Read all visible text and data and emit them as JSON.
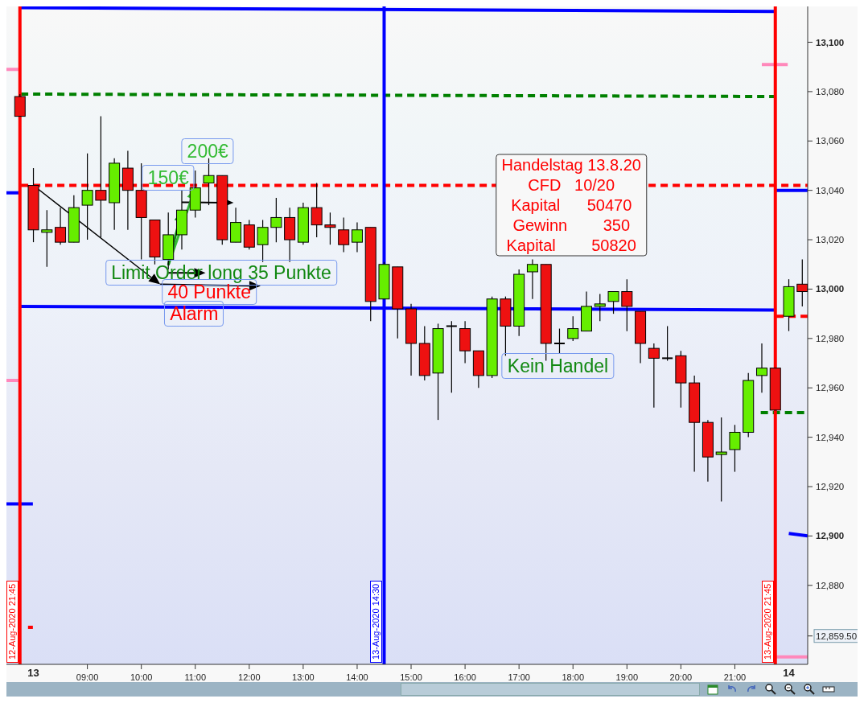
{
  "chart_data": {
    "type": "candlestick",
    "x": [
      7.75,
      8,
      8.25,
      8.5,
      8.75,
      9,
      9.25,
      9.5,
      9.75,
      10,
      10.25,
      10.5,
      10.75,
      11,
      11.25,
      11.5,
      11.75,
      12,
      12.25,
      12.5,
      12.75,
      13,
      13.25,
      13.5,
      13.75,
      14,
      14.25,
      14.5,
      14.75,
      15,
      15.25,
      15.5,
      15.75,
      16,
      16.25,
      16.5,
      16.75,
      17,
      17.25,
      17.5,
      17.75,
      18,
      18.25,
      18.5,
      18.75,
      19,
      19.25,
      19.5,
      19.75,
      20,
      20.25,
      20.5,
      20.75,
      21,
      21.25,
      21.5,
      21.75,
      22,
      22.25
    ],
    "ohlc": [
      [
        13078,
        13079,
        13070,
        13070
      ],
      [
        13042,
        13049,
        13019,
        13024
      ],
      [
        13023,
        13032,
        13009,
        13024
      ],
      [
        13025,
        13033,
        13018,
        13019
      ],
      [
        13019,
        13038,
        13019,
        13033
      ],
      [
        13034,
        13055,
        13020,
        13040
      ],
      [
        13040,
        13070,
        13021,
        13036
      ],
      [
        13035,
        13053,
        13024,
        13051
      ],
      [
        13049,
        13056,
        13024,
        13040
      ],
      [
        13040,
        13051,
        13012,
        13029
      ],
      [
        13028,
        13028,
        13010,
        13013
      ],
      [
        13012,
        13031,
        13008,
        13022
      ],
      [
        13022,
        13040,
        13016,
        13032
      ],
      [
        13032,
        13048,
        13029,
        13041
      ],
      [
        13043,
        13053,
        13034,
        13046
      ],
      [
        13046,
        13046,
        13018,
        13020
      ],
      [
        13019,
        13033,
        13019,
        13027
      ],
      [
        13026,
        13028,
        13016,
        13017
      ],
      [
        13018,
        13028,
        13011,
        13025
      ],
      [
        13025,
        13037,
        13019,
        13029
      ],
      [
        13029,
        13033,
        13011,
        13020
      ],
      [
        13019,
        13035,
        13018,
        13033
      ],
      [
        13033,
        13043,
        13021,
        13026
      ],
      [
        13026,
        13031,
        13018,
        13025
      ],
      [
        13024,
        13029,
        13015,
        13018
      ],
      [
        13019,
        13027,
        13015,
        13024
      ],
      [
        13025,
        13025,
        12987,
        12995
      ],
      [
        12996,
        13011,
        12996,
        13010
      ],
      [
        13009,
        13009,
        12980,
        12992
      ],
      [
        12992,
        12994,
        12965,
        12978
      ],
      [
        12978,
        12985,
        12963,
        12965
      ],
      [
        12966,
        12986,
        12947,
        12984
      ],
      [
        12985,
        12987,
        12958,
        12985
      ],
      [
        12984,
        12987,
        12970,
        12975
      ],
      [
        12975,
        12975,
        12960,
        12965
      ],
      [
        12965,
        12997,
        12964,
        12996
      ],
      [
        12996,
        12997,
        12973,
        12985
      ],
      [
        12985,
        13008,
        12981,
        13006
      ],
      [
        13007,
        13012,
        12996,
        13010
      ],
      [
        13010,
        13010,
        12971,
        12978
      ],
      [
        12978,
        12984,
        12974,
        12978
      ],
      [
        12980,
        12989,
        12979,
        12984
      ],
      [
        12983,
        12999,
        12983,
        12993
      ],
      [
        12993,
        12998,
        12987,
        12994
      ],
      [
        12995,
        12999,
        12990,
        12999
      ],
      [
        12999,
        13004,
        12983,
        12993
      ],
      [
        12991,
        12991,
        12970,
        12978
      ],
      [
        12976,
        12978,
        12952,
        12972
      ],
      [
        12972,
        12985,
        12971,
        12972
      ],
      [
        12973,
        12975,
        12952,
        12962
      ],
      [
        12962,
        12965,
        12926,
        12946
      ],
      [
        12946,
        12947,
        12922,
        12932
      ],
      [
        12933,
        12948,
        12914,
        12934
      ],
      [
        12935,
        12945,
        12926,
        12942
      ],
      [
        12942,
        12966,
        12940,
        12963
      ],
      [
        12965,
        12978,
        12958,
        12968
      ],
      [
        12968,
        12968,
        12951,
        12951
      ],
      [
        12989,
        13004,
        12983,
        13001
      ],
      [
        13002,
        13012,
        12993,
        12999
      ]
    ],
    "colors": [
      "#ee1111",
      "#ee1111",
      "#66ee00",
      "#ee1111",
      "#66ee00",
      "#66ee00",
      "#ee1111",
      "#66ee00",
      "#ee1111",
      "#ee1111",
      "#ee1111",
      "#66ee00",
      "#66ee00",
      "#66ee00",
      "#66ee00",
      "#ee1111",
      "#66ee00",
      "#ee1111",
      "#66ee00",
      "#66ee00",
      "#ee1111",
      "#66ee00",
      "#ee1111",
      "#ee1111",
      "#ee1111",
      "#66ee00",
      "#ee1111",
      "#66ee00",
      "#ee1111",
      "#ee1111",
      "#ee1111",
      "#66ee00",
      "#000000",
      "#ee1111",
      "#ee1111",
      "#66ee00",
      "#ee1111",
      "#66ee00",
      "#66ee00",
      "#ee1111",
      "#000000",
      "#66ee00",
      "#66ee00",
      "#66ee00",
      "#66ee00",
      "#ee1111",
      "#ee1111",
      "#ee1111",
      "#000000",
      "#ee1111",
      "#ee1111",
      "#ee1111",
      "#66ee00",
      "#66ee00",
      "#66ee00",
      "#66ee00",
      "#ee1111",
      "#66ee00",
      "#ee1111"
    ],
    "series": [
      {
        "type": "line",
        "x": [
          7.75,
          21.75
        ],
        "values": [
          13114,
          13112.5
        ],
        "color": "#0000ff",
        "line_style": "solid"
      },
      {
        "type": "line",
        "x": [
          7.75,
          21.75
        ],
        "values": [
          12993,
          12991.5
        ],
        "color": "#0000ff",
        "line_style": "solid"
      },
      {
        "type": "line",
        "x": [
          7.77,
          21.75
        ],
        "values": [
          13079,
          13078
        ],
        "color": "#008000",
        "line_style": "dashed"
      },
      {
        "type": "line",
        "x": [
          7.77,
          22.35
        ],
        "values": [
          13042,
          13042
        ],
        "color": "#ff0000",
        "line_style": "dashed"
      },
      {
        "type": "line",
        "x": [
          7.5,
          7.74
        ],
        "values": [
          13039,
          13039
        ],
        "color": "#0000ff",
        "line_style": "solid"
      },
      {
        "type": "line",
        "x": [
          7.5,
          7.99
        ],
        "values": [
          12913,
          12913
        ],
        "color": "#0000ff",
        "line_style": "solid"
      },
      {
        "type": "line",
        "x": [
          7.5,
          7.72
        ],
        "values": [
          13089,
          13089
        ],
        "color": "#ff88bb",
        "line_style": "solid"
      },
      {
        "type": "line",
        "x": [
          7.5,
          7.72
        ],
        "values": [
          12963,
          12963
        ],
        "color": "#ff88bb",
        "line_style": "solid"
      },
      {
        "type": "line",
        "x": [
          7.9,
          7.99
        ],
        "values": [
          12863,
          12863
        ],
        "color": "#ff0000",
        "line_style": "dashed"
      },
      {
        "type": "line",
        "x": [
          21.77,
          22.35
        ],
        "values": [
          13040,
          13040
        ],
        "color": "#0000ff",
        "line_style": "solid"
      },
      {
        "type": "line",
        "x": [
          22.0,
          22.35
        ],
        "values": [
          12901,
          12900
        ],
        "color": "#0000ff",
        "line_style": "solid"
      },
      {
        "type": "line",
        "x": [
          21.5,
          21.98
        ],
        "values": [
          13091,
          13091
        ],
        "color": "#ff88bb",
        "line_style": "solid"
      },
      {
        "type": "line",
        "x": [
          21.77,
          22.35
        ],
        "values": [
          12851,
          12851
        ],
        "color": "#ff88bb",
        "line_style": "solid"
      },
      {
        "type": "line",
        "x": [
          21.48,
          22.35
        ],
        "values": [
          12950,
          12950
        ],
        "color": "#008000",
        "line_style": "dashed"
      },
      {
        "type": "line",
        "x": [
          21.77,
          22.35
        ],
        "values": [
          12989,
          12989
        ],
        "color": "#ff0000",
        "line_style": "dashed"
      }
    ],
    "xlim": [
      7.5,
      22.35
    ],
    "xticks": [
      {
        "value": 9,
        "label": "09:00"
      },
      {
        "value": 10,
        "label": "10:00"
      },
      {
        "value": 11,
        "label": "11:00"
      },
      {
        "value": 12,
        "label": "12:00"
      },
      {
        "value": 13,
        "label": "13:00"
      },
      {
        "value": 14,
        "label": "14:00"
      },
      {
        "value": 15,
        "label": "15:00"
      },
      {
        "value": 16,
        "label": "16:00"
      },
      {
        "value": 17,
        "label": "17:00"
      },
      {
        "value": 18,
        "label": "18:00"
      },
      {
        "value": 19,
        "label": "19:00"
      },
      {
        "value": 20,
        "label": "20:00"
      },
      {
        "value": 21,
        "label": "21:00"
      }
    ],
    "ylim": [
      12848,
      13114.5
    ],
    "yticks": [
      {
        "value": 12859.5,
        "label": "12,859.50"
      },
      {
        "value": 12880,
        "label": "12,880"
      },
      {
        "value": 12900,
        "label": "12,900"
      },
      {
        "value": 12920,
        "label": "12,920"
      },
      {
        "value": 12940,
        "label": "12,940"
      },
      {
        "value": 12960,
        "label": "12,960"
      },
      {
        "value": 12980,
        "label": "12,980"
      },
      {
        "value": 13000,
        "label": "13,000"
      },
      {
        "value": 13020,
        "label": "13,020"
      },
      {
        "value": 13040,
        "label": "13,040"
      },
      {
        "value": 13060,
        "label": "13,060"
      },
      {
        "value": 13080,
        "label": "13,080"
      },
      {
        "value": 13100,
        "label": "13,100"
      }
    ],
    "ref_lines": [
      {
        "axis": "x",
        "value": 7.75,
        "color": "#ff0000"
      },
      {
        "axis": "x",
        "value": 14.5,
        "color": "#0000ff"
      },
      {
        "axis": "x",
        "value": 21.75,
        "color": "#ff0000"
      }
    ],
    "annotations": [
      "200€",
      {
        "text": "150€",
        "x": 11,
        "y": 13041
      },
      {
        "text": "Limit Order long 35 Punkte",
        "x": 10.75,
        "y": 13032
      },
      {
        "text": "40 Punkte",
        "x": 8,
        "y": 13042
      },
      "Alarm",
      "Kein Handel",
      "Handelstag 13.8.20\nCFD   10/20\nKapital      50470\nGewinn        350\nKapital        50820",
      "13",
      "14",
      "12-Aug-2020 21:45",
      "13-Aug-2020 14:30",
      "13-Aug-2020 21:45"
    ]
  }
}
